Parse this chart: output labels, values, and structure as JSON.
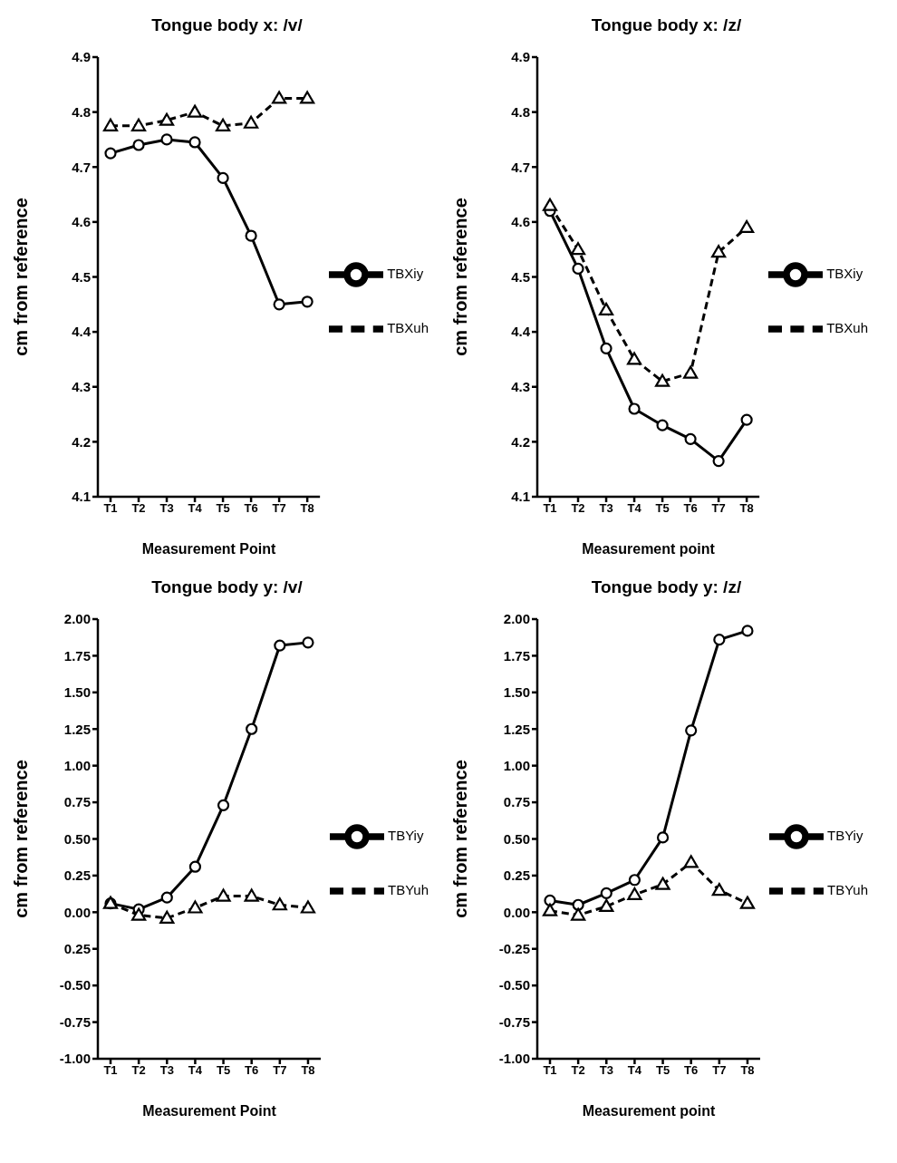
{
  "chart_data": [
    {
      "type": "line",
      "title": "Tongue body x: /v/",
      "xlabel": "Measurement Point",
      "ylabel": "cm from reference",
      "categories": [
        "T1",
        "T2",
        "T3",
        "T4",
        "T5",
        "T6",
        "T7",
        "T8"
      ],
      "ylim": [
        4.1,
        4.9
      ],
      "yticks": [
        4.1,
        4.2,
        4.3,
        4.4,
        4.5,
        4.6,
        4.7,
        4.8,
        4.9
      ],
      "legend": "right",
      "series": [
        {
          "name": "TBXiy",
          "color": "#000000",
          "marker": "circle",
          "line_style": "solid",
          "values": [
            4.725,
            4.74,
            4.75,
            4.745,
            4.68,
            4.575,
            4.45,
            4.455
          ]
        },
        {
          "name": "TBXuh",
          "color": "#000000",
          "marker": "triangle",
          "line_style": "dashed",
          "values": [
            4.775,
            4.775,
            4.785,
            4.8,
            4.775,
            4.78,
            4.825,
            4.825
          ]
        }
      ]
    },
    {
      "type": "line",
      "title": "Tongue body x: /z/",
      "xlabel": "Measurement point",
      "ylabel": "cm from reference",
      "categories": [
        "T1",
        "T2",
        "T3",
        "T4",
        "T5",
        "T6",
        "T7",
        "T8"
      ],
      "ylim": [
        4.1,
        4.9
      ],
      "yticks": [
        4.1,
        4.2,
        4.3,
        4.4,
        4.5,
        4.6,
        4.7,
        4.8,
        4.9
      ],
      "legend": "right",
      "series": [
        {
          "name": "TBXiy",
          "color": "#000000",
          "marker": "circle",
          "line_style": "solid",
          "values": [
            4.62,
            4.515,
            4.37,
            4.26,
            4.23,
            4.205,
            4.165,
            4.24
          ]
        },
        {
          "name": "TBXuh",
          "color": "#000000",
          "marker": "triangle",
          "line_style": "dashed",
          "values": [
            4.63,
            4.55,
            4.44,
            4.35,
            4.31,
            4.325,
            4.545,
            4.59
          ]
        }
      ]
    },
    {
      "type": "line",
      "title": "Tongue body y: /v/",
      "xlabel": "Measurement Point",
      "ylabel": "cm from reference",
      "categories": [
        "T1",
        "T2",
        "T3",
        "T4",
        "T5",
        "T6",
        "T7",
        "T8"
      ],
      "ylim": [
        -1,
        2
      ],
      "yticks": [
        {
          "value": -1,
          "label": "-1.00"
        },
        {
          "value": -0.75,
          "label": "-0.75"
        },
        {
          "value": -0.5,
          "label": "-0.50"
        },
        {
          "value": -0.25,
          "label": "0.25"
        },
        {
          "value": 0,
          "label": "0.00"
        },
        {
          "value": 0.25,
          "label": "0.25"
        },
        {
          "value": 0.5,
          "label": "0.50"
        },
        {
          "value": 0.75,
          "label": "0.75"
        },
        {
          "value": 1,
          "label": "1.00"
        },
        {
          "value": 1.25,
          "label": "1.25"
        },
        {
          "value": 1.5,
          "label": "1.50"
        },
        {
          "value": 1.75,
          "label": "1.75"
        },
        {
          "value": 2,
          "label": "2.00"
        }
      ],
      "legend": "right",
      "series": [
        {
          "name": "TBYiy",
          "color": "#000000",
          "marker": "circle",
          "line_style": "solid",
          "values": [
            0.06,
            0.02,
            0.1,
            0.31,
            0.73,
            1.25,
            1.82,
            1.84
          ]
        },
        {
          "name": "TBYuh",
          "color": "#000000",
          "marker": "triangle",
          "line_style": "dashed",
          "values": [
            0.06,
            -0.02,
            -0.04,
            0.03,
            0.11,
            0.11,
            0.05,
            0.03
          ]
        }
      ]
    },
    {
      "type": "line",
      "title": "Tongue body y: /z/",
      "xlabel": "Measurement point",
      "ylabel": "cm from reference",
      "categories": [
        "T1",
        "T2",
        "T3",
        "T4",
        "T5",
        "T6",
        "T7",
        "T8"
      ],
      "ylim": [
        -1,
        2
      ],
      "yticks": [
        {
          "value": -1,
          "label": "-1.00"
        },
        {
          "value": -0.75,
          "label": "-0.75"
        },
        {
          "value": -0.5,
          "label": "-0.50"
        },
        {
          "value": -0.25,
          "label": "-0.25"
        },
        {
          "value": 0,
          "label": "0.00"
        },
        {
          "value": 0.25,
          "label": "0.25"
        },
        {
          "value": 0.5,
          "label": "0.50"
        },
        {
          "value": 0.75,
          "label": "0.75"
        },
        {
          "value": 1,
          "label": "1.00"
        },
        {
          "value": 1.25,
          "label": "1.25"
        },
        {
          "value": 1.5,
          "label": "1.50"
        },
        {
          "value": 1.75,
          "label": "1.75"
        },
        {
          "value": 2,
          "label": "2.00"
        }
      ],
      "legend": "right",
      "series": [
        {
          "name": "TBYiy",
          "color": "#000000",
          "marker": "circle",
          "line_style": "solid",
          "values": [
            0.08,
            0.05,
            0.13,
            0.22,
            0.51,
            1.24,
            1.86,
            1.92
          ]
        },
        {
          "name": "TBYuh",
          "color": "#000000",
          "marker": "triangle",
          "line_style": "dashed",
          "values": [
            0.01,
            -0.02,
            0.04,
            0.12,
            0.19,
            0.34,
            0.15,
            0.06
          ]
        }
      ]
    }
  ]
}
